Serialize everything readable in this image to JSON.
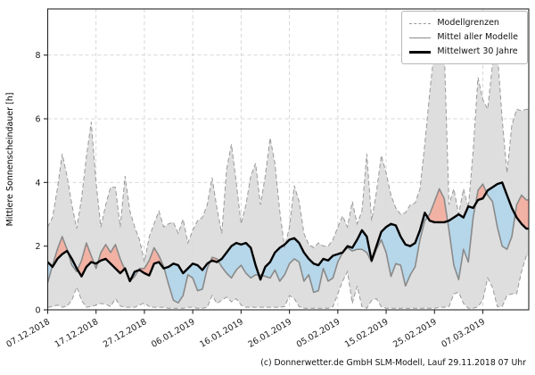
{
  "figure": {
    "caption": "(c) Donnerwetter.de GmbH SLM-Modell, Lauf 29.11.2018 07 Uhr",
    "legend": [
      {
        "label": "Modellgrenzen",
        "style": "dashed",
        "color": "#999999"
      },
      {
        "label": "Mittel aller Modelle",
        "style": "solid",
        "color": "#8a8a8a"
      },
      {
        "label": "Mittelwert 30 Jahre",
        "style": "thick",
        "color": "#000000"
      }
    ]
  },
  "chart_data": {
    "type": "line",
    "title": "",
    "xlabel": "",
    "ylabel": "Mittlere Sonnenscheindauer [h]",
    "x_unit": "days since 07.12.2018, daily values",
    "x_tick_labels": [
      "07.12.2018",
      "17.12.2018",
      "27.12.2018",
      "06.01.2019",
      "16.01.2019",
      "26.01.2019",
      "05.02.2019",
      "15.02.2019",
      "25.02.2019",
      "07.03.2019"
    ],
    "x_tick_days": [
      0,
      10,
      20,
      30,
      40,
      50,
      60,
      70,
      80,
      90
    ],
    "x_range_days": [
      0,
      99.5
    ],
    "ylim": [
      0,
      9.45
    ],
    "yticks": [
      0,
      2,
      4,
      6,
      8
    ],
    "grid": true,
    "legend_position": "upper right",
    "series": [
      {
        "name": "Modellgrenzen (oberes Limit)",
        "role": "upper-bound",
        "values": [
          2.6,
          2.9,
          3.8,
          4.9,
          4.2,
          3.3,
          2.55,
          3.5,
          4.8,
          5.9,
          4.0,
          2.6,
          3.3,
          3.85,
          3.85,
          2.6,
          4.2,
          3.1,
          2.6,
          2.2,
          1.5,
          2.3,
          2.7,
          3.1,
          2.6,
          2.7,
          2.75,
          2.4,
          2.85,
          2.1,
          2.5,
          2.8,
          2.9,
          3.3,
          4.15,
          3.2,
          2.4,
          4.4,
          5.2,
          4.0,
          2.7,
          3.3,
          4.2,
          4.6,
          3.3,
          4.2,
          5.4,
          4.6,
          3.1,
          1.95,
          2.6,
          3.9,
          3.4,
          2.4,
          2.05,
          1.95,
          2.1,
          2.0,
          2.0,
          2.2,
          2.6,
          2.95,
          2.6,
          3.4,
          2.7,
          3.1,
          4.9,
          2.8,
          3.7,
          4.85,
          4.3,
          3.6,
          3.2,
          3.0,
          3.05,
          3.3,
          3.35,
          3.8,
          5.2,
          6.8,
          8.2,
          8.4,
          8.3,
          3.3,
          3.8,
          3.0,
          3.8,
          3.2,
          5.0,
          7.3,
          6.6,
          6.3,
          7.7,
          8.1,
          6.0,
          4.3,
          5.8,
          6.3,
          6.25,
          6.3
        ]
      },
      {
        "name": "Modellgrenzen (unteres Limit)",
        "role": "lower-bound",
        "values": [
          0.08,
          0.1,
          0.15,
          0.08,
          0.12,
          0.3,
          0.72,
          0.3,
          0.08,
          0.1,
          0.15,
          0.2,
          0.18,
          0.1,
          0.35,
          0.12,
          0.08,
          0.08,
          0.08,
          0.15,
          0.22,
          0.1,
          0.08,
          0.08,
          0.08,
          0.05,
          0.05,
          0.05,
          0.05,
          0.08,
          0.08,
          0.05,
          0.05,
          0.08,
          0.45,
          0.2,
          0.3,
          0.4,
          0.25,
          0.35,
          0.15,
          0.08,
          0.08,
          0.08,
          0.08,
          0.08,
          0.08,
          0.08,
          0.08,
          0.1,
          0.45,
          0.35,
          0.1,
          0.05,
          0.05,
          0.05,
          0.05,
          0.05,
          0.05,
          0.1,
          0.5,
          0.9,
          1.2,
          0.2,
          0.75,
          0.1,
          0.05,
          0.3,
          0.35,
          0.1,
          0.05,
          0.05,
          0.05,
          0.05,
          0.05,
          0.05,
          0.05,
          0.05,
          0.05,
          0.05,
          0.05,
          0.08,
          0.08,
          0.1,
          0.5,
          0.55,
          0.2,
          0.05,
          0.05,
          0.1,
          0.3,
          1.0,
          0.7,
          0.1,
          0.1,
          0.45,
          0.5,
          0.5,
          1.2,
          1.7
        ]
      },
      {
        "name": "Mittel aller Modelle",
        "role": "model-mean",
        "values": [
          0.85,
          1.4,
          1.9,
          2.3,
          1.9,
          1.4,
          1.2,
          1.55,
          2.1,
          1.7,
          1.3,
          1.8,
          2.05,
          1.8,
          2.05,
          1.6,
          1.25,
          0.9,
          1.05,
          1.3,
          1.3,
          1.55,
          1.95,
          1.7,
          1.35,
          0.8,
          0.3,
          0.22,
          0.45,
          1.1,
          1.0,
          0.6,
          0.65,
          1.3,
          1.65,
          1.6,
          1.35,
          1.15,
          1.0,
          1.25,
          1.4,
          1.15,
          1.0,
          1.1,
          1.1,
          1.05,
          1.0,
          1.25,
          0.9,
          1.1,
          1.45,
          1.6,
          1.5,
          0.9,
          1.1,
          0.55,
          0.6,
          1.3,
          0.9,
          1.0,
          1.5,
          1.8,
          1.95,
          1.85,
          1.9,
          1.9,
          1.8,
          1.5,
          1.9,
          2.2,
          1.8,
          1.05,
          1.45,
          1.4,
          0.75,
          1.1,
          1.35,
          2.2,
          2.8,
          3.0,
          3.4,
          3.8,
          3.5,
          2.5,
          1.4,
          0.95,
          1.9,
          1.5,
          2.9,
          3.75,
          3.95,
          3.6,
          3.4,
          2.6,
          2.0,
          1.9,
          2.3,
          3.3,
          3.6,
          3.45
        ]
      },
      {
        "name": "Mittelwert 30 Jahre",
        "role": "climate-mean",
        "values": [
          1.5,
          1.35,
          1.6,
          1.75,
          1.85,
          1.6,
          1.3,
          1.05,
          1.35,
          1.5,
          1.45,
          1.55,
          1.6,
          1.45,
          1.3,
          1.15,
          1.3,
          0.9,
          1.2,
          1.25,
          1.15,
          1.08,
          1.45,
          1.5,
          1.3,
          1.35,
          1.45,
          1.4,
          1.15,
          1.3,
          1.45,
          1.4,
          1.25,
          1.45,
          1.55,
          1.5,
          1.6,
          1.8,
          2.0,
          2.1,
          2.05,
          2.1,
          1.95,
          1.4,
          0.95,
          1.35,
          1.5,
          1.8,
          1.95,
          2.05,
          2.2,
          2.25,
          2.1,
          1.8,
          1.6,
          1.45,
          1.4,
          1.6,
          1.55,
          1.7,
          1.75,
          1.8,
          2.0,
          1.95,
          2.2,
          2.5,
          2.3,
          1.55,
          2.0,
          2.45,
          2.6,
          2.7,
          2.65,
          2.3,
          2.05,
          2.0,
          2.1,
          2.5,
          3.05,
          2.8,
          2.75,
          2.75,
          2.75,
          2.8,
          2.9,
          3.0,
          2.9,
          3.25,
          3.2,
          3.45,
          3.5,
          3.75,
          3.85,
          3.95,
          4.0,
          3.6,
          3.2,
          2.9,
          2.7,
          2.55
        ]
      }
    ],
    "colors": {
      "band": "#dcdcdc",
      "bound_line": "#999999",
      "model_mean_line": "#8a8a8a",
      "climate_mean_line": "#000000",
      "above_normal_fill": "#f1b2a4",
      "below_normal_fill": "#b6d6e9",
      "grid": "#d2d2d2",
      "spine": "#262626"
    }
  }
}
